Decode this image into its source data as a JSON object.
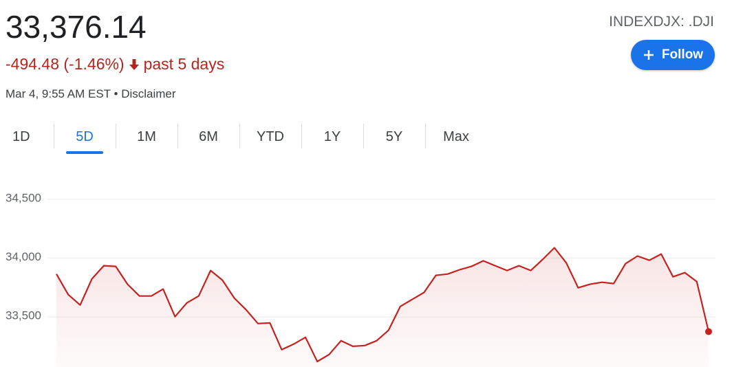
{
  "header": {
    "price": "33,376.14",
    "change": "-494.48 (-1.46%)",
    "period": "past 5 days",
    "timestamp": "Mar 4, 9:55 AM EST",
    "separator": "•",
    "disclaimer": "Disclaimer",
    "ticker": "INDEXDJX: .DJI",
    "follow": "Follow"
  },
  "tabs": {
    "items": [
      "1D",
      "5D",
      "1M",
      "6M",
      "YTD",
      "1Y",
      "5Y",
      "Max"
    ],
    "selected": 1
  },
  "chart_data": {
    "type": "line",
    "color": "#c5221f",
    "values": [
      33865,
      33690,
      33602,
      33825,
      33936,
      33930,
      33778,
      33678,
      33678,
      33737,
      33503,
      33620,
      33678,
      33895,
      33813,
      33661,
      33561,
      33444,
      33450,
      33222,
      33269,
      33327,
      33122,
      33181,
      33298,
      33251,
      33257,
      33298,
      33386,
      33590,
      33649,
      33708,
      33854,
      33865,
      33901,
      33930,
      33977,
      33936,
      33895,
      33936,
      33895,
      33988,
      34088,
      33959,
      33748,
      33778,
      33795,
      33784,
      33953,
      34018,
      33982,
      34035,
      33842,
      33877,
      33801,
      33376
    ],
    "ylim": [
      33075,
      34675
    ],
    "yticks": [
      {
        "value": 33500,
        "label": "33,500"
      },
      {
        "value": 34000,
        "label": "34,000"
      },
      {
        "value": 34500,
        "label": "34,500"
      }
    ],
    "grid": true
  }
}
